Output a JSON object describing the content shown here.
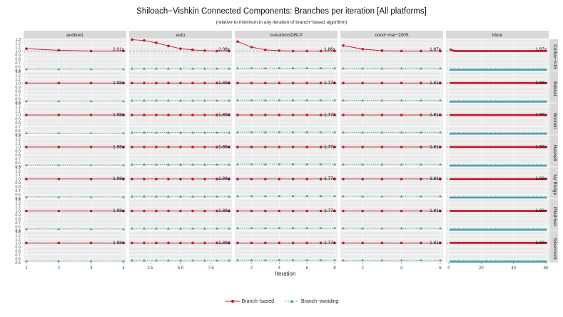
{
  "title": "Shiloach−Vishkin Connected Components: Branches per iteration [All platforms]",
  "subtitle": "(relative to minimum in any iteration of branch−based algorithm)",
  "xlabel": "Iteration",
  "legend": {
    "branch_based": "Branch−based",
    "branch_avoiding": "Branch−avoiding"
  },
  "colors": {
    "branch_based": "#c7162b",
    "branch_avoiding": "#3a9fa8",
    "panel_bg": "#ebebeb",
    "strip_bg": "#d9d9d9",
    "grid": "#ffffff"
  },
  "chart_data": {
    "type": "line",
    "facet_columns": [
      "audikw1",
      "auto",
      "coAuthorsDBLP",
      "cond−mat−2005",
      "ldoor"
    ],
    "facet_rows": [
      "Cortex−A15",
      "Bobcat",
      "Bonnell",
      "Haswell",
      "Ivy Bridge",
      "Piledriver",
      "Silvermont"
    ],
    "ylim": [
      0.5,
      1.3
    ],
    "yticks": [
      "0.5",
      "0.6",
      "0.7",
      "0.8",
      "0.9",
      "1.0",
      "1.1",
      "1.2",
      "1.3"
    ],
    "reference_line": 1.0,
    "x_axes": [
      {
        "xlim": [
          1,
          4
        ],
        "ticks": [
          1,
          2,
          3,
          4
        ],
        "tick_labels": [
          "1",
          "2",
          "3",
          "4"
        ]
      },
      {
        "xlim": [
          1,
          9
        ],
        "ticks": [
          2.5,
          5.0,
          7.5
        ],
        "tick_labels": [
          "2.5",
          "5.0",
          "7.5"
        ]
      },
      {
        "xlim": [
          1,
          8
        ],
        "ticks": [
          2,
          4,
          6,
          8
        ],
        "tick_labels": [
          "2",
          "4",
          "6",
          "8"
        ]
      },
      {
        "xlim": [
          1,
          6
        ],
        "ticks": [
          2,
          4,
          6
        ],
        "tick_labels": [
          "2",
          "4",
          "6"
        ]
      },
      {
        "xlim": [
          0,
          60
        ],
        "ticks": [
          0,
          20,
          40,
          60
        ],
        "tick_labels": [
          "0",
          "20",
          "40",
          "60"
        ]
      }
    ],
    "ratio_labels": [
      [
        "2.01x",
        "2.08x",
        "1.86x",
        "1.87x",
        "1.97x"
      ],
      [
        "1.98x",
        "1.88x",
        "1.77x",
        "1.81x",
        "1.96x"
      ],
      [
        "1.98x",
        "1.88x",
        "1.77x",
        "1.81x",
        "1.96x"
      ],
      [
        "1.98x",
        "1.88x",
        "1.77x",
        "1.81x",
        "1.96x"
      ],
      [
        "1.98x",
        "1.88x",
        "1.77x",
        "1.81x",
        "1.96x"
      ],
      [
        "1.98x",
        "1.88x",
        "1.77x",
        "1.81x",
        "1.96x"
      ],
      [
        "1.98x",
        "1.88x",
        "1.77x",
        "1.81x",
        "1.96x"
      ]
    ],
    "branch_based": {
      "audikw1": [
        1.06,
        1.02,
        1.0,
        1.0
      ],
      "auto": [
        1.29,
        1.27,
        1.21,
        1.13,
        1.06,
        1.03,
        1.01,
        1.0,
        1.0
      ],
      "coAuthorsDBLP": [
        1.24,
        1.1,
        1.03,
        1.01,
        1.0,
        1.0,
        1.0,
        1.0
      ],
      "cond−mat−2005": [
        1.14,
        1.05,
        1.01,
        1.0,
        1.0,
        1.0
      ],
      "ldoor_start": [
        1.04,
        1.02,
        1.01,
        1.0
      ]
    },
    "branch_avoiding_level": {
      "audikw1": 0.54,
      "auto": 0.555,
      "coAuthorsDBLP": 0.565,
      "cond−mat−2005": 0.56,
      "ldoor": 0.53
    },
    "series": [
      {
        "name": "Branch−based"
      },
      {
        "name": "Branch−avoiding"
      }
    ],
    "grid": true,
    "legend_position": "bottom"
  }
}
